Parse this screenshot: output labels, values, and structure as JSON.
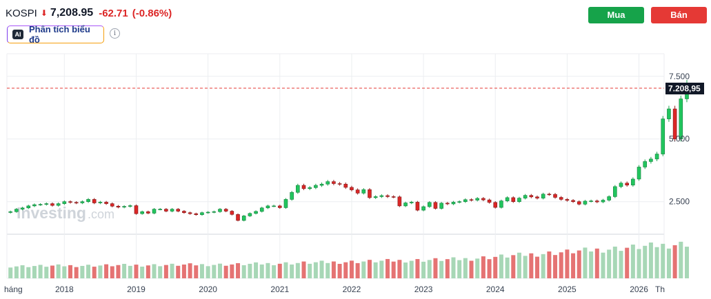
{
  "header": {
    "symbol": "KOSPI",
    "direction_icon": "down-arrow-icon",
    "price": "7,208.95",
    "change": "-62.71",
    "change_pct": "(-0.86%)",
    "ai_badge": "AI",
    "ai_button_label": "Phân tích biểu đồ",
    "info_icon": "info-icon"
  },
  "actions": {
    "buy_label": "Mua",
    "sell_label": "Bán",
    "buy_color": "#16a34a",
    "sell_color": "#e53935"
  },
  "watermark": {
    "brand": "Investing",
    "suffix": ".com"
  },
  "chart_data": {
    "type": "candlestick",
    "price_axis_labels": [
      "7.500",
      "5.000",
      "2.500"
    ],
    "price_axis_values": [
      7500,
      5000,
      2500
    ],
    "ylim": [
      1200,
      8400
    ],
    "current_price_label": "7.208,95",
    "current_price": 7208.95,
    "x_labels": [
      "háng",
      "2018",
      "2019",
      "2020",
      "2021",
      "2022",
      "2023",
      "2024",
      "2025",
      "2026",
      "Th"
    ],
    "year_ticks": [
      2018,
      2019,
      2020,
      2021,
      2022,
      2023,
      2024,
      2025,
      2026
    ],
    "xlim": [
      2017.2,
      2026.35
    ],
    "series": [
      {
        "values": [
          2100,
          2200,
          2250,
          2330,
          2380,
          2390,
          2420,
          2350,
          2420,
          2500,
          2470,
          2450
        ]
      },
      {
        "values": [
          2500,
          2590,
          2450,
          2480,
          2420,
          2320,
          2280,
          2310,
          2340,
          2020,
          2100,
          2040
        ]
      },
      {
        "values": [
          2200,
          2200,
          2120,
          2200,
          2120,
          2060,
          2020,
          1980,
          2060,
          2080,
          2100,
          2200
        ]
      },
      {
        "values": [
          2120,
          1990,
          1750,
          1930,
          2030,
          2110,
          2250,
          2330,
          2330,
          2260,
          2590,
          2870
        ]
      },
      {
        "values": [
          3150,
          3020,
          3060,
          3150,
          3200,
          3300,
          3220,
          3200,
          3070,
          2970,
          2840,
          2980
        ]
      },
      {
        "values": [
          2660,
          2700,
          2740,
          2700,
          2690,
          2330,
          2450,
          2480,
          2160,
          2300,
          2470,
          2230
        ]
      },
      {
        "values": [
          2440,
          2410,
          2480,
          2500,
          2580,
          2560,
          2630,
          2570,
          2470,
          2270,
          2530,
          2660
        ]
      },
      {
        "values": [
          2500,
          2640,
          2750,
          2690,
          2640,
          2800,
          2790,
          2670,
          2590,
          2550,
          2500,
          2400
        ]
      },
      {
        "values": [
          2520,
          2530,
          2490,
          2560,
          2700,
          3100,
          3240,
          3160,
          3400,
          3880,
          4100,
          4200
        ]
      },
      {
        "values": [
          4400,
          5800,
          6200,
          5000,
          6600,
          7208.95
        ]
      }
    ],
    "volume_relative": [
      0.35,
      0.4,
      0.55,
      1.0
    ]
  }
}
